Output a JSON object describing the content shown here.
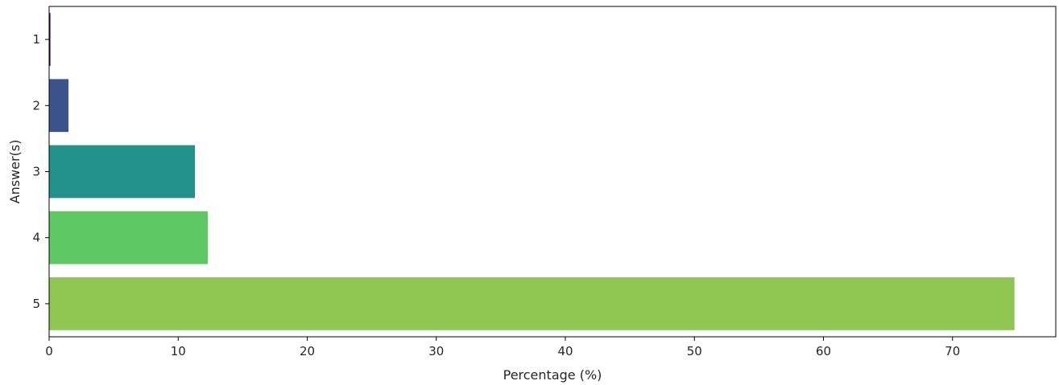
{
  "chart_data": {
    "type": "bar",
    "orientation": "horizontal",
    "categories": [
      "1",
      "2",
      "3",
      "4",
      "5"
    ],
    "values": [
      0.1,
      1.5,
      11.3,
      12.3,
      74.8
    ],
    "colors": [
      "#440154",
      "#3b528b",
      "#21918c",
      "#5ec962",
      "#8fc651"
    ],
    "xlabel": "Percentage (%)",
    "ylabel": "Answer(s)",
    "xlim": [
      0,
      78
    ],
    "xticks": [
      0,
      10,
      20,
      30,
      40,
      50,
      60,
      70
    ],
    "grid": false,
    "legend": "none"
  }
}
